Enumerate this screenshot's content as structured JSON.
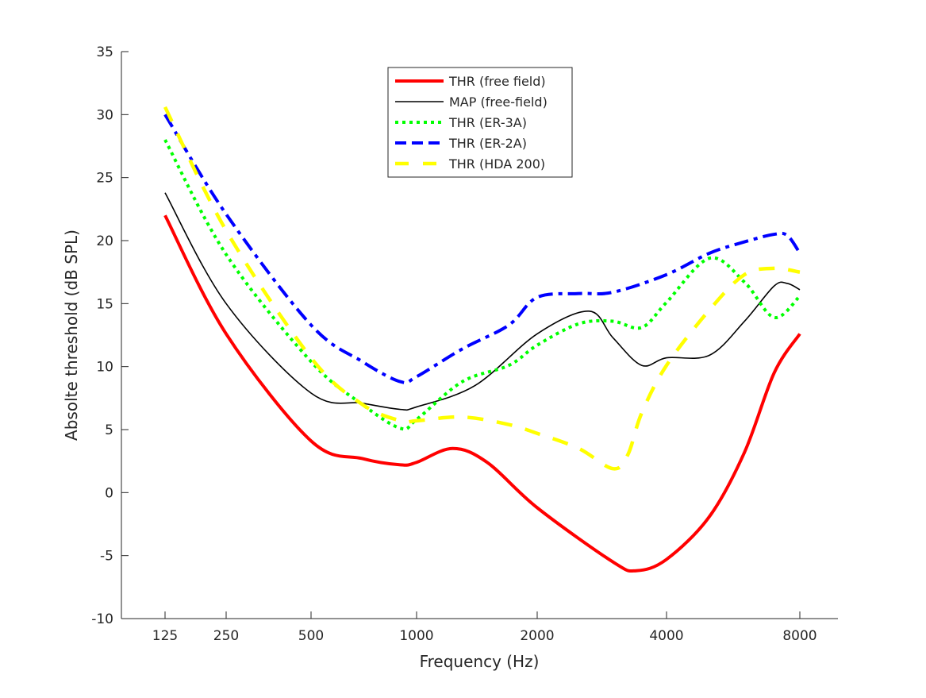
{
  "chart_data": {
    "type": "line",
    "title": "",
    "xlabel": "Frequency (Hz)",
    "ylabel": "Absolte threshold (dB SPL)",
    "x_scale": "log-like (nonuniform octave ticks)",
    "xticks": [
      125,
      250,
      500,
      1000,
      2000,
      4000,
      8000
    ],
    "yticks": [
      -10,
      -5,
      0,
      5,
      10,
      15,
      20,
      25,
      30,
      35
    ],
    "ylim": [
      -10,
      35
    ],
    "grid": false,
    "legend_position": "top-center",
    "series": [
      {
        "name": "THR (free field)",
        "color": "#ff0000",
        "style": "solid-thick",
        "x": [
          125,
          250,
          500,
          700,
          900,
          1000,
          1230,
          1500,
          2000,
          3000,
          3400,
          4000,
          5000,
          6000,
          7000,
          8000
        ],
        "y": [
          22.0,
          12.6,
          4.1,
          2.7,
          2.2,
          2.4,
          3.5,
          2.4,
          -1.2,
          -5.5,
          -6.2,
          -5.3,
          -1.9,
          3.2,
          9.5,
          12.6
        ]
      },
      {
        "name": "MAP (free-field)",
        "color": "#000000",
        "style": "solid-thin",
        "x": [
          125,
          250,
          500,
          700,
          900,
          1000,
          1400,
          2000,
          2640,
          3000,
          3500,
          4000,
          5000,
          6000,
          7000,
          7500,
          8000
        ],
        "y": [
          23.8,
          15.0,
          7.9,
          7.1,
          6.6,
          6.8,
          8.5,
          12.6,
          14.4,
          12.3,
          10.1,
          10.7,
          10.9,
          13.6,
          16.4,
          16.6,
          16.1
        ]
      },
      {
        "name": "THR (ER-3A)",
        "color": "#00ff00",
        "style": "dotted",
        "x": [
          125,
          250,
          500,
          700,
          900,
          1000,
          1300,
          1700,
          2000,
          2500,
          3000,
          3500,
          4000,
          5000,
          6000,
          7000,
          8000
        ],
        "y": [
          28.0,
          18.9,
          10.4,
          7.0,
          5.1,
          5.8,
          8.8,
          10.1,
          11.7,
          13.4,
          13.6,
          13.1,
          15.1,
          18.6,
          16.7,
          13.9,
          15.6
        ]
      },
      {
        "name": "THR (ER-2A)",
        "color": "#0000ff",
        "style": "dashdot",
        "x": [
          125,
          250,
          500,
          700,
          900,
          1000,
          1300,
          1700,
          2000,
          2500,
          3000,
          4000,
          5000,
          6000,
          7000,
          7500,
          8000
        ],
        "y": [
          30.0,
          22.1,
          13.3,
          10.4,
          8.8,
          9.2,
          11.4,
          13.3,
          15.5,
          15.8,
          15.9,
          17.3,
          19.0,
          19.9,
          20.5,
          20.4,
          19.0
        ]
      },
      {
        "name": "THR (HDA 200)",
        "color": "#ffff00",
        "style": "dashed",
        "x": [
          125,
          250,
          500,
          700,
          900,
          1000,
          1300,
          1700,
          2000,
          2500,
          3000,
          3250,
          3500,
          4000,
          5000,
          6000,
          7000,
          8000
        ],
        "y": [
          30.6,
          20.8,
          10.7,
          7.0,
          5.7,
          5.7,
          6.0,
          5.4,
          4.7,
          3.5,
          1.9,
          3.0,
          6.3,
          10.1,
          14.5,
          17.3,
          17.8,
          17.5
        ]
      }
    ]
  }
}
